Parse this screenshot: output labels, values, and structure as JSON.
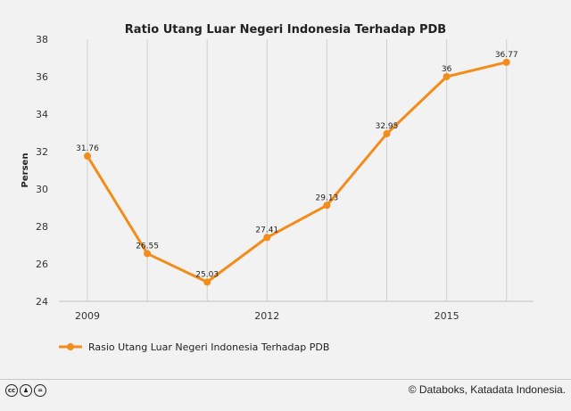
{
  "chart_data": {
    "type": "line",
    "title": "Ratio Utang Luar Negeri Indonesia Terhadap PDB",
    "ylabel": "Persen",
    "xlabel": "",
    "x": [
      2009,
      2010,
      2011,
      2012,
      2013,
      2014,
      2015,
      2016
    ],
    "xticks": [
      "2009",
      "2012",
      "2015"
    ],
    "yticks": [
      "24",
      "26",
      "28",
      "30",
      "32",
      "34",
      "36",
      "38"
    ],
    "ylim": [
      24,
      38
    ],
    "grid": "vertical",
    "legend": "bottom-left",
    "series": [
      {
        "name": "Rasio Utang Luar Negeri Indonesia Terhadap PDB",
        "values": [
          31.76,
          26.55,
          25.03,
          27.41,
          29.13,
          32.95,
          36,
          36.77
        ],
        "labels": [
          "31.76",
          "26.55",
          "25.03",
          "27.41",
          "29.13",
          "32.95",
          "36",
          "36.77"
        ],
        "color": "#f28c1b"
      }
    ]
  },
  "footer": {
    "credit": "© Databoks, Katadata Indonesia.",
    "license_icons": [
      "creative-commons-icon",
      "attribution-icon",
      "no-derivatives-icon"
    ]
  }
}
